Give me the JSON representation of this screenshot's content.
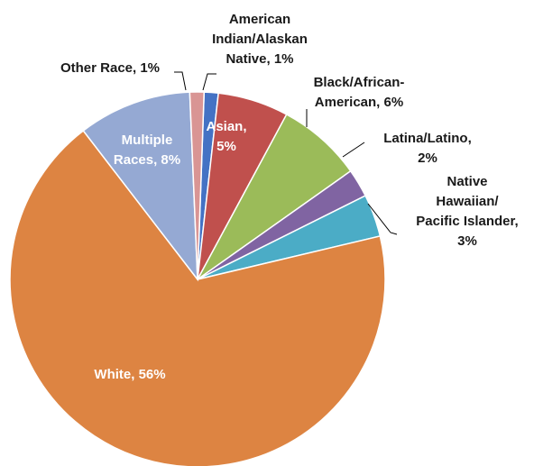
{
  "chart_data": {
    "type": "pie",
    "title": "",
    "slices": [
      {
        "label": "American Indian/Alaskan Native, 1%",
        "category": "American Indian/Alaskan Native",
        "value": 1,
        "color": "#4472C4"
      },
      {
        "label": "Asian, 5%",
        "category": "Asian",
        "value": 5,
        "color": "#C0504D"
      },
      {
        "label": "Black/African-American, 6%",
        "category": "Black/African-American",
        "value": 6,
        "color": "#9BBB59"
      },
      {
        "label": "Latina/Latino, 2%",
        "category": "Latina/Latino",
        "value": 2,
        "color": "#8064A2"
      },
      {
        "label": "Native Hawaiian/ Pacific Islander, 3%",
        "category": "Native Hawaiian/ Pacific Islander",
        "value": 3,
        "color": "#4BACC6"
      },
      {
        "label": "White, 56%",
        "category": "White",
        "value": 56,
        "color": "#DD8442"
      },
      {
        "label": "Multiple Races, 8%",
        "category": "Multiple Races",
        "value": 8,
        "color": "#95A9D3"
      },
      {
        "label": "Other Race, 1%",
        "category": "Other Race",
        "value": 1,
        "color": "#D99594"
      }
    ]
  }
}
